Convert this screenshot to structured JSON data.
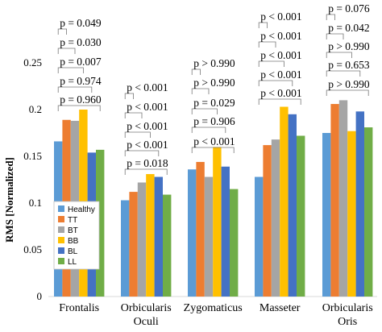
{
  "chart_data": {
    "type": "bar",
    "title": "",
    "xlabel": "",
    "ylabel": "RMS [Normalized]",
    "ylim": [
      0,
      0.25
    ],
    "yticks": [
      "0",
      "0.05",
      "0.1",
      "0.15",
      "0.2",
      "0.25"
    ],
    "grid": false,
    "legend_position": "bottom-left",
    "categories": [
      {
        "lines": [
          "Frontalis"
        ]
      },
      {
        "lines": [
          "Orbicularis",
          "Oculi"
        ]
      },
      {
        "lines": [
          "Zygomaticus"
        ]
      },
      {
        "lines": [
          "Masseter"
        ]
      },
      {
        "lines": [
          "Orbicularis",
          "Oris"
        ]
      }
    ],
    "series": [
      {
        "name": "Healthy",
        "color": "#5b9bd5",
        "values": [
          0.166,
          0.103,
          0.136,
          0.128,
          0.175
        ]
      },
      {
        "name": "TT",
        "color": "#ed7d31",
        "values": [
          0.189,
          0.112,
          0.144,
          0.162,
          0.206
        ]
      },
      {
        "name": "BT",
        "color": "#a5a5a5",
        "values": [
          0.188,
          0.122,
          0.128,
          0.168,
          0.21
        ]
      },
      {
        "name": "BB",
        "color": "#ffc000",
        "values": [
          0.2,
          0.131,
          0.16,
          0.203,
          0.177
        ]
      },
      {
        "name": "BL",
        "color": "#4472c4",
        "values": [
          0.154,
          0.128,
          0.139,
          0.195,
          0.198
        ]
      },
      {
        "name": "LL",
        "color": "#70ad47",
        "values": [
          0.157,
          0.109,
          0.115,
          0.172,
          0.181
        ]
      }
    ],
    "annotations": [
      [
        "p = 0.960",
        "p = 0.974",
        "p = 0.007",
        "p = 0.030",
        "p = 0.049"
      ],
      [
        "p = 0.018",
        "p < 0.001",
        "p < 0.001",
        "p < 0.001",
        "p < 0.001"
      ],
      [
        "p < 0.001",
        "p = 0.906",
        "p = 0.029",
        "p > 0.990",
        "p > 0.990"
      ],
      [
        "p < 0.001",
        "p < 0.001",
        "p < 0.001",
        "p < 0.001",
        "p < 0.001"
      ],
      [
        "p > 0.990",
        "p = 0.653",
        "p > 0.990",
        "p = 0.042",
        "p = 0.076"
      ]
    ]
  }
}
